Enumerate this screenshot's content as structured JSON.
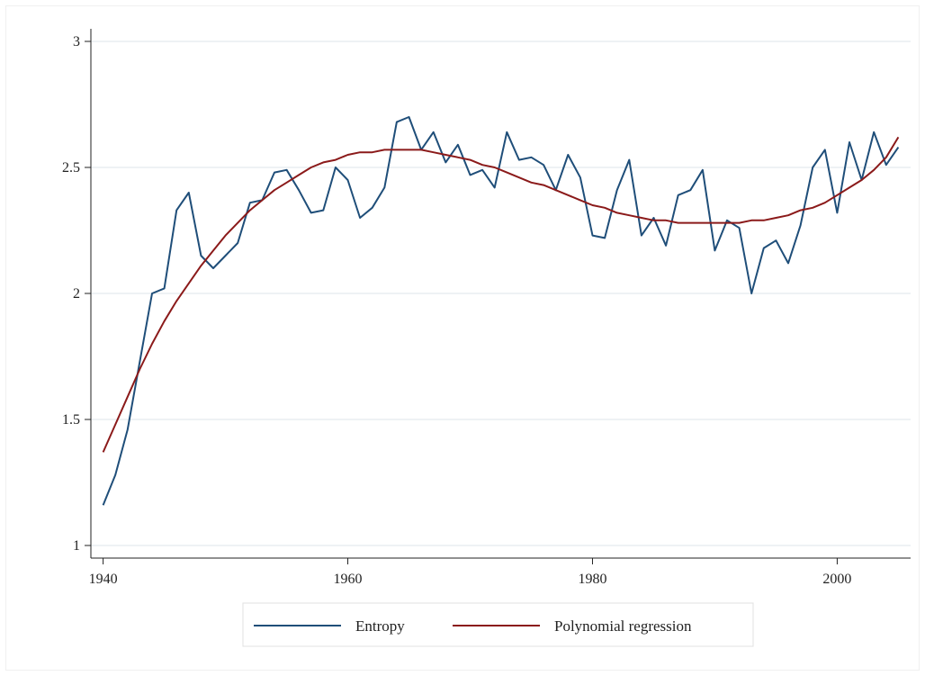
{
  "chart_data": {
    "type": "line",
    "title": "",
    "xlabel": "",
    "ylabel": "",
    "xlim": [
      1939,
      2006
    ],
    "ylim": [
      0.95,
      3.05
    ],
    "xticks": [
      1940,
      1960,
      1980,
      2000
    ],
    "yticks": [
      1,
      1.5,
      2,
      2.5,
      3
    ],
    "xtick_labels": [
      "1940",
      "1960",
      "1980",
      "2000"
    ],
    "ytick_labels": [
      "1",
      "1.5",
      "2",
      "2.5",
      "3"
    ],
    "grid": "horizontal",
    "legend": "bottom",
    "x": [
      1940,
      1941,
      1942,
      1943,
      1944,
      1945,
      1946,
      1947,
      1948,
      1949,
      1950,
      1951,
      1952,
      1953,
      1954,
      1955,
      1956,
      1957,
      1958,
      1959,
      1960,
      1961,
      1962,
      1963,
      1964,
      1965,
      1966,
      1967,
      1968,
      1969,
      1970,
      1971,
      1972,
      1973,
      1974,
      1975,
      1976,
      1977,
      1978,
      1979,
      1980,
      1981,
      1982,
      1983,
      1984,
      1985,
      1986,
      1987,
      1988,
      1989,
      1990,
      1991,
      1992,
      1993,
      1994,
      1995,
      1996,
      1997,
      1998,
      1999,
      2000,
      2001,
      2002,
      2003,
      2004,
      2005
    ],
    "series": [
      {
        "name": "Entropy",
        "color": "#1f4e79",
        "values": [
          1.16,
          1.28,
          1.46,
          1.73,
          2.0,
          2.02,
          2.33,
          2.4,
          2.15,
          2.1,
          2.15,
          2.2,
          2.36,
          2.37,
          2.48,
          2.49,
          2.41,
          2.32,
          2.33,
          2.5,
          2.45,
          2.3,
          2.34,
          2.42,
          2.68,
          2.7,
          2.57,
          2.64,
          2.52,
          2.59,
          2.47,
          2.49,
          2.42,
          2.64,
          2.53,
          2.54,
          2.51,
          2.41,
          2.55,
          2.46,
          2.23,
          2.22,
          2.41,
          2.53,
          2.23,
          2.3,
          2.19,
          2.39,
          2.41,
          2.49,
          2.17,
          2.29,
          2.26,
          2.0,
          2.18,
          2.21,
          2.12,
          2.27,
          2.5,
          2.57,
          2.32,
          2.6,
          2.45,
          2.64,
          2.51,
          2.58
        ]
      },
      {
        "name": "Polynomial regression",
        "color": "#8b1a1a",
        "values": [
          1.37,
          1.48,
          1.59,
          1.7,
          1.8,
          1.89,
          1.97,
          2.04,
          2.11,
          2.17,
          2.23,
          2.28,
          2.33,
          2.37,
          2.41,
          2.44,
          2.47,
          2.5,
          2.52,
          2.53,
          2.55,
          2.56,
          2.56,
          2.57,
          2.57,
          2.57,
          2.57,
          2.56,
          2.55,
          2.54,
          2.53,
          2.51,
          2.5,
          2.48,
          2.46,
          2.44,
          2.43,
          2.41,
          2.39,
          2.37,
          2.35,
          2.34,
          2.32,
          2.31,
          2.3,
          2.29,
          2.29,
          2.28,
          2.28,
          2.28,
          2.28,
          2.28,
          2.28,
          2.29,
          2.29,
          2.3,
          2.31,
          2.33,
          2.34,
          2.36,
          2.39,
          2.42,
          2.45,
          2.49,
          2.54,
          2.62
        ]
      }
    ]
  }
}
